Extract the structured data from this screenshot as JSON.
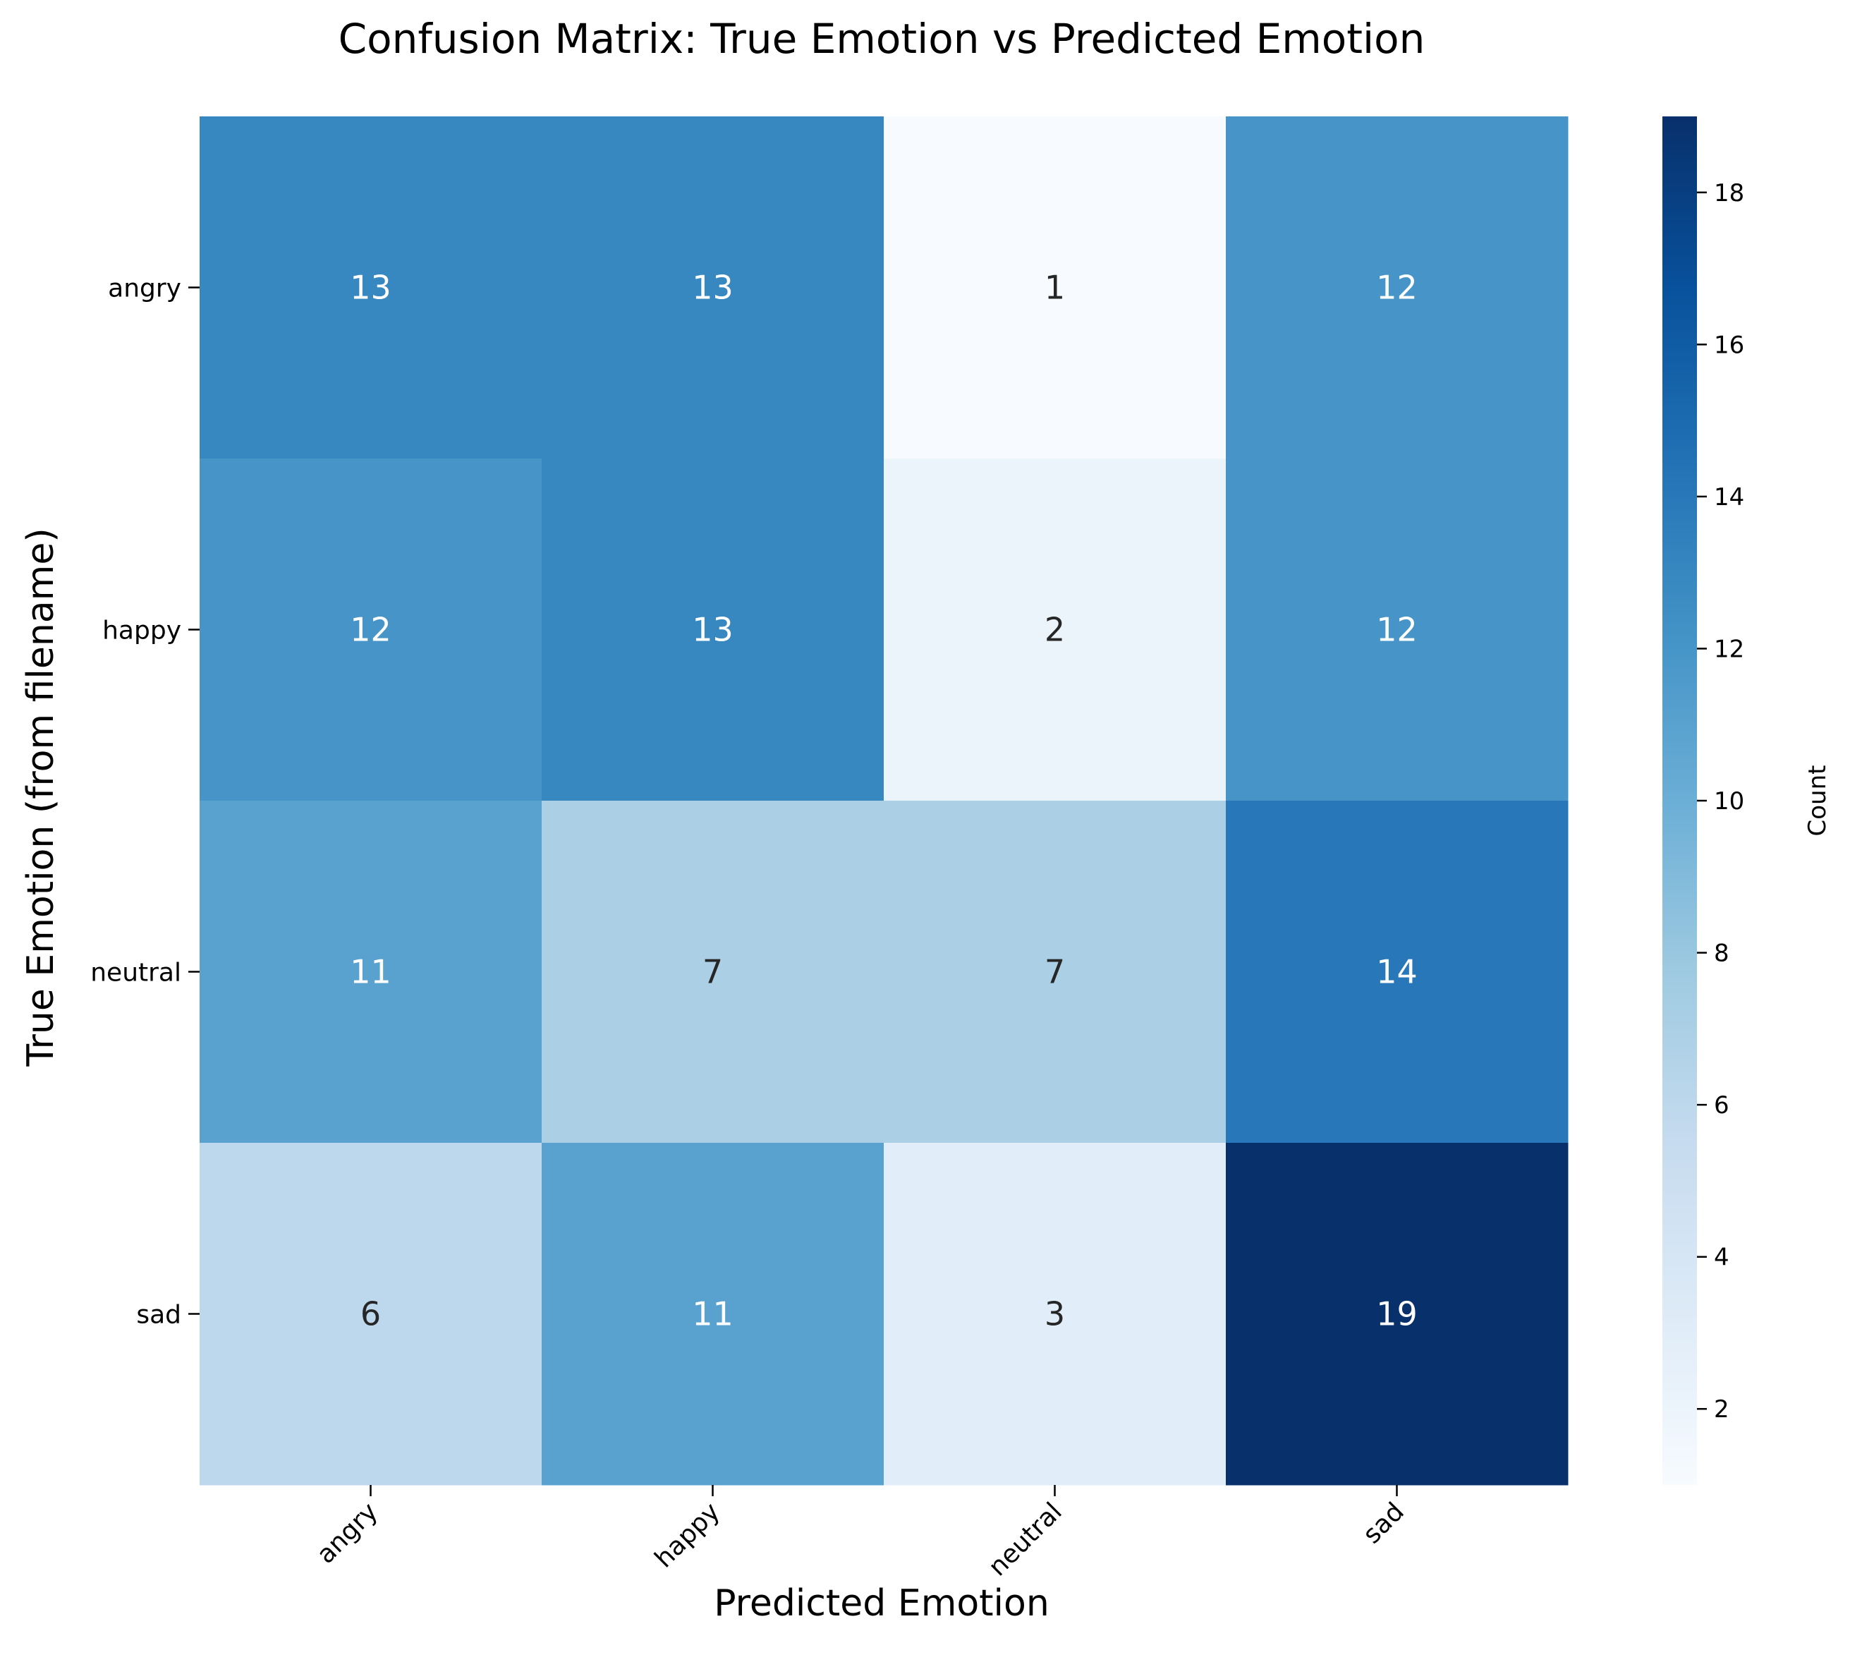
{
  "chart_data": {
    "type": "heatmap",
    "title": "Confusion Matrix: True Emotion vs Predicted Emotion",
    "xlabel": "Predicted Emotion",
    "ylabel": "True Emotion (from filename)",
    "x_categories": [
      "angry",
      "happy",
      "neutral",
      "sad"
    ],
    "y_categories": [
      "angry",
      "happy",
      "neutral",
      "sad"
    ],
    "values": [
      [
        13,
        13,
        1,
        12
      ],
      [
        12,
        13,
        2,
        12
      ],
      [
        11,
        7,
        7,
        14
      ],
      [
        6,
        11,
        3,
        19
      ]
    ],
    "colorbar": {
      "label": "Count",
      "range": [
        1,
        19
      ],
      "ticks": [
        "2",
        "4",
        "6",
        "8",
        "10",
        "12",
        "14",
        "16",
        "18"
      ],
      "colormap": "Blues"
    }
  }
}
